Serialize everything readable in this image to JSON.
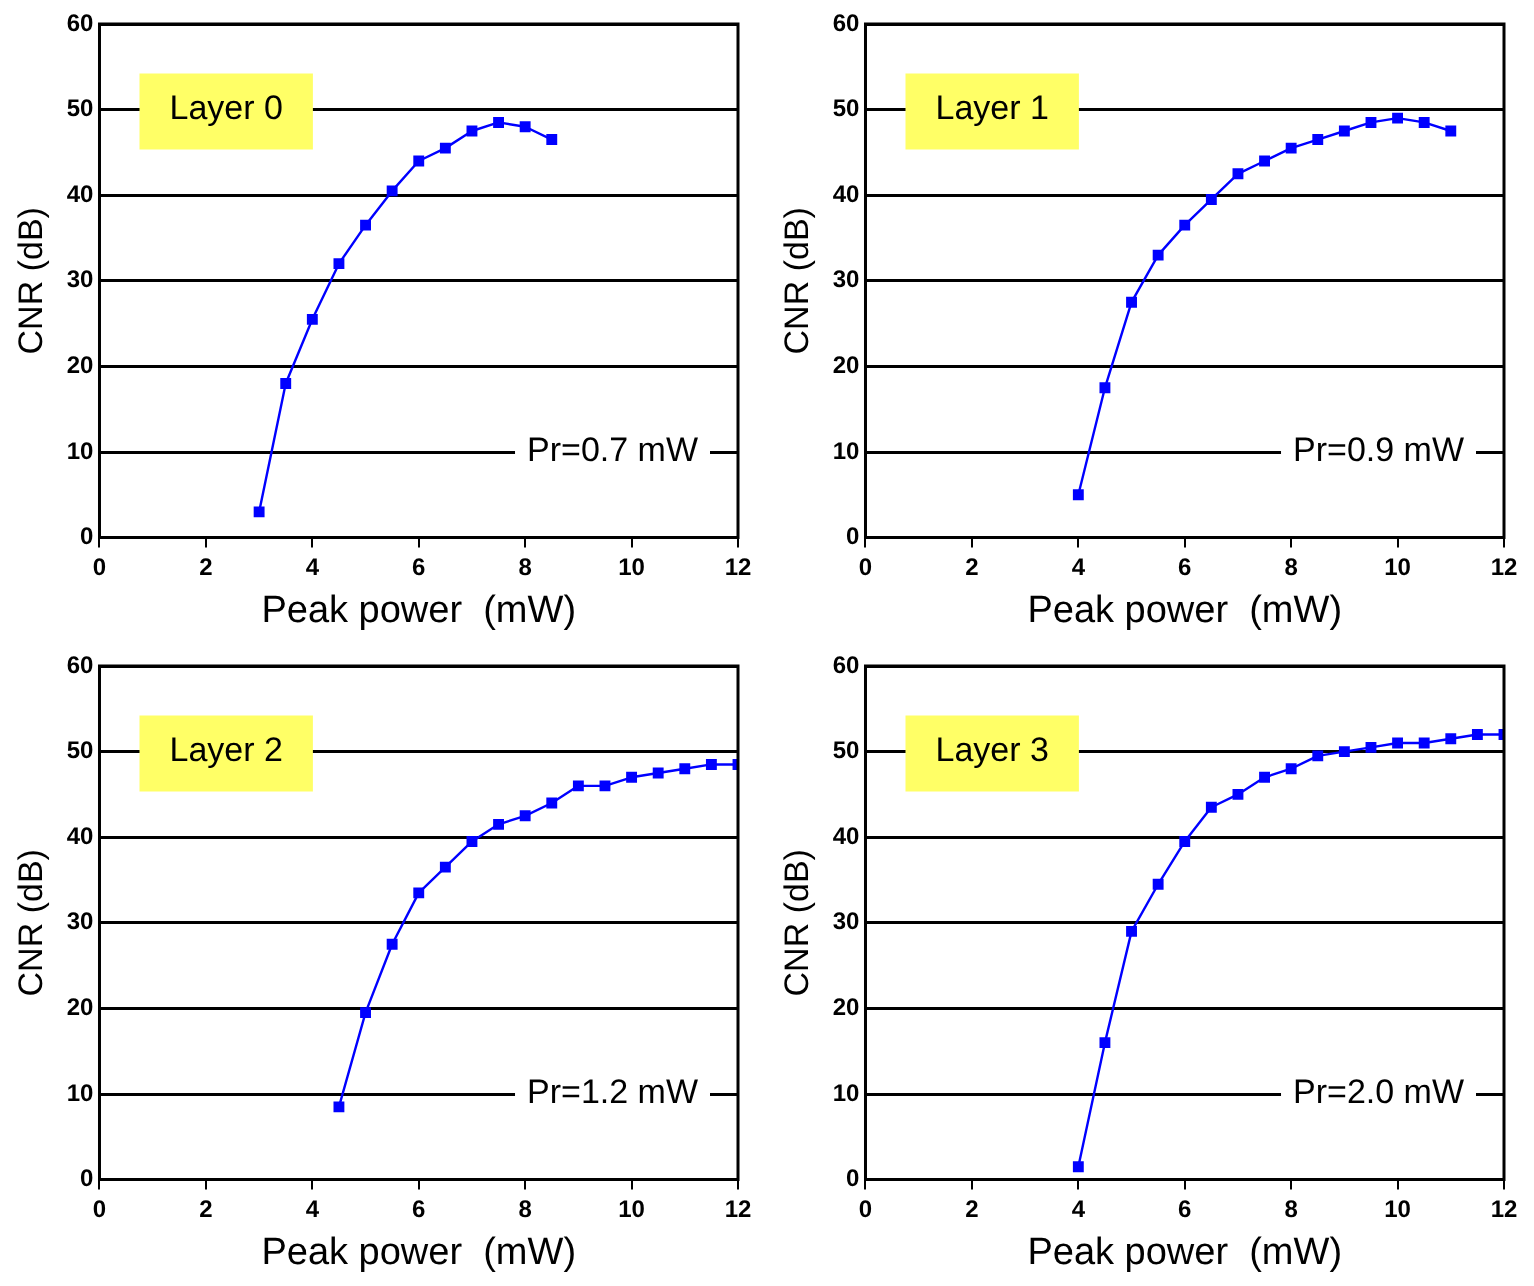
{
  "chart_data": [
    {
      "type": "line",
      "annotations": [
        "Layer 0",
        "Pr=0.7 mW"
      ],
      "xlabel": "Peak power  (mW)",
      "ylabel": "CNR (dB)",
      "marker": "square",
      "grid": "y",
      "xlim": [
        0,
        12
      ],
      "ylim": [
        0,
        60
      ],
      "xticks": [
        0,
        2,
        4,
        6,
        8,
        10,
        12
      ],
      "yticks": [
        0,
        10,
        20,
        30,
        40,
        50,
        60
      ],
      "x": [
        3,
        3.5,
        4,
        4.5,
        5,
        5.5,
        6,
        6.5,
        7,
        7.5,
        8,
        8.5
      ],
      "series": [
        {
          "color": "#0000ff",
          "values": [
            3,
            18,
            25.5,
            32,
            36.5,
            40.5,
            44,
            45.5,
            47.5,
            48.5,
            48,
            46.5
          ]
        }
      ]
    },
    {
      "type": "line",
      "annotations": [
        "Layer 1",
        "Pr=0.9 mW"
      ],
      "xlabel": "Peak power  (mW)",
      "ylabel": "CNR (dB)",
      "marker": "square",
      "grid": "y",
      "xlim": [
        0,
        12
      ],
      "ylim": [
        0,
        60
      ],
      "xticks": [
        0,
        2,
        4,
        6,
        8,
        10,
        12
      ],
      "yticks": [
        0,
        10,
        20,
        30,
        40,
        50,
        60
      ],
      "x": [
        4,
        4.5,
        5,
        5.5,
        6,
        6.5,
        7,
        7.5,
        8,
        8.5,
        9,
        9.5,
        10,
        10.5,
        11
      ],
      "series": [
        {
          "color": "#0000ff",
          "values": [
            5,
            17.5,
            27.5,
            33,
            36.5,
            39.5,
            42.5,
            44,
            45.5,
            46.5,
            47.5,
            48.5,
            49,
            48.5,
            47.5
          ]
        }
      ]
    },
    {
      "type": "line",
      "annotations": [
        "Layer 2",
        "Pr=1.2 mW"
      ],
      "xlabel": "Peak power  (mW)",
      "ylabel": "CNR (dB)",
      "marker": "square",
      "grid": "y",
      "xlim": [
        0,
        12
      ],
      "ylim": [
        0,
        60
      ],
      "xticks": [
        0,
        2,
        4,
        6,
        8,
        10,
        12
      ],
      "yticks": [
        0,
        10,
        20,
        30,
        40,
        50,
        60
      ],
      "x": [
        4.5,
        5,
        5.5,
        6,
        6.5,
        7,
        7.5,
        8,
        8.5,
        9,
        9.5,
        10,
        10.5,
        11,
        11.5,
        12
      ],
      "series": [
        {
          "color": "#0000ff",
          "values": [
            8.5,
            19.5,
            27.5,
            33.5,
            36.5,
            39.5,
            41.5,
            42.5,
            44,
            46,
            46,
            47,
            47.5,
            48,
            48.5,
            48.5
          ]
        }
      ]
    },
    {
      "type": "line",
      "annotations": [
        "Layer 3",
        "Pr=2.0 mW"
      ],
      "xlabel": "Peak power  (mW)",
      "ylabel": "CNR (dB)",
      "marker": "square",
      "grid": "y",
      "xlim": [
        0,
        12
      ],
      "ylim": [
        0,
        60
      ],
      "xticks": [
        0,
        2,
        4,
        6,
        8,
        10,
        12
      ],
      "yticks": [
        0,
        10,
        20,
        30,
        40,
        50,
        60
      ],
      "x": [
        4,
        4.5,
        5,
        5.5,
        6,
        6.5,
        7,
        7.5,
        8,
        8.5,
        9,
        9.5,
        10,
        10.5,
        11,
        11.5,
        12
      ],
      "series": [
        {
          "color": "#0000ff",
          "values": [
            1.5,
            16,
            29,
            34.5,
            39.5,
            43.5,
            45,
            47,
            48,
            49.5,
            50,
            50.5,
            51,
            51,
            51.5,
            52,
            52
          ]
        }
      ]
    }
  ]
}
